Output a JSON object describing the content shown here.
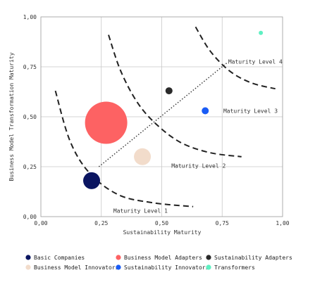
{
  "chart_data": {
    "type": "scatter",
    "title": "",
    "xlabel": "Sustainability Maturity",
    "ylabel": "Business Model Transformation Maturity",
    "xlim": [
      0,
      1
    ],
    "ylim": [
      0,
      1
    ],
    "x_ticks": [
      0,
      0.25,
      0.5,
      0.75,
      1
    ],
    "y_ticks": [
      0,
      0.25,
      0.5,
      0.75,
      1
    ],
    "x_tick_labels": [
      "0,00",
      "0,25",
      "0,50",
      "0,75",
      "1,00"
    ],
    "y_tick_labels": [
      "0,00",
      "0,25",
      "0,50",
      "0,75",
      "1,00"
    ],
    "grid": true,
    "legend_position": "bottom",
    "series": [
      {
        "name": "Basic Companies",
        "x": [
          0.21
        ],
        "y": [
          0.18
        ],
        "size": "medium",
        "color": "#0b1561"
      },
      {
        "name": "Business Model Adapters",
        "x": [
          0.27
        ],
        "y": [
          0.47
        ],
        "size": "large",
        "color": "#fd6263"
      },
      {
        "name": "Sustainability Adapters",
        "x": [
          0.53
        ],
        "y": [
          0.63
        ],
        "size": "small",
        "color": "#2a2a2a"
      },
      {
        "name": "Business Model Innovators",
        "x": [
          0.42
        ],
        "y": [
          0.3
        ],
        "size": "medium",
        "color": "#f2dccb"
      },
      {
        "name": "Sustainability Innovators",
        "x": [
          0.68
        ],
        "y": [
          0.53
        ],
        "size": "small",
        "color": "#1a5cf5"
      },
      {
        "name": "Transformers",
        "x": [
          0.91
        ],
        "y": [
          0.92
        ],
        "size": "tiny",
        "color": "#5ef0c2"
      }
    ],
    "maturity_curves": [
      {
        "label": "Maturity Level 1",
        "points": [
          [
            0.06,
            0.63
          ],
          [
            0.12,
            0.38
          ],
          [
            0.2,
            0.22
          ],
          [
            0.32,
            0.11
          ],
          [
            0.46,
            0.07
          ],
          [
            0.63,
            0.05
          ]
        ]
      },
      {
        "label": "Maturity Level 2",
        "points": [
          [
            0.28,
            0.91
          ],
          [
            0.33,
            0.73
          ],
          [
            0.4,
            0.57
          ],
          [
            0.48,
            0.46
          ],
          [
            0.58,
            0.37
          ],
          [
            0.7,
            0.32
          ],
          [
            0.83,
            0.3
          ]
        ]
      },
      {
        "label": "Maturity Level 4",
        "points": [
          [
            0.64,
            0.95
          ],
          [
            0.7,
            0.83
          ],
          [
            0.78,
            0.73
          ],
          [
            0.87,
            0.67
          ],
          [
            0.97,
            0.64
          ]
        ]
      }
    ],
    "maturity_level_3_label": "Maturity Level 3",
    "trend_line": {
      "from": [
        0.24,
        0.25
      ],
      "to": [
        0.77,
        0.77
      ],
      "style": "dotted"
    }
  }
}
